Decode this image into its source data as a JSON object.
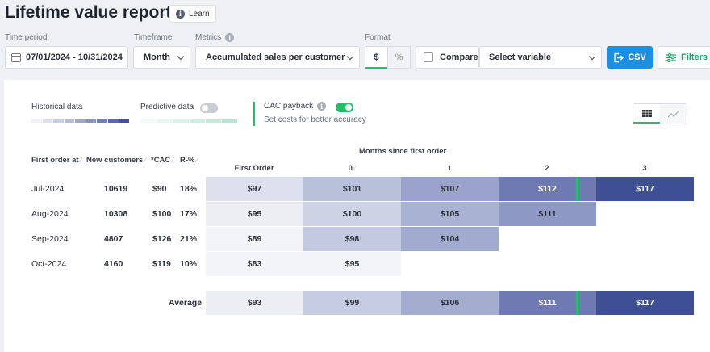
{
  "header": {
    "title": "Lifetime value report",
    "learn_label": "Learn"
  },
  "controls": {
    "time_period_label": "Time period",
    "time_period_value": "07/01/2024 - 10/31/2024",
    "timeframe_label": "Timeframe",
    "timeframe_value": "Month",
    "metrics_label": "Metrics",
    "metrics_value": "Accumulated sales per customer",
    "format_label": "Format",
    "format_options": [
      "$",
      "%"
    ],
    "compare_label": "Compare",
    "variable_placeholder": "Select variable",
    "csv_label": "CSV",
    "filters_label": "Filters"
  },
  "legend": {
    "historical_label": "Historical data",
    "predictive_label": "Predictive data",
    "cac_label": "CAC payback",
    "cac_subtitle": "Set costs for better accuracy",
    "historical_colors": [
      "#eef0f6",
      "#dde1ee",
      "#c9cfe3",
      "#b4bcd8",
      "#9ea8cd",
      "#8893c1",
      "#717db4",
      "#5b68a7",
      "#45529a"
    ],
    "predictive_colors": [
      "#f2fbf7",
      "#e6f7ef",
      "#d9f3e8",
      "#cdefe1",
      "#c1ebd9",
      "#b5e7d2"
    ]
  },
  "table": {
    "months_header": "Months since first order",
    "row_headers": [
      "First order at",
      "New customers",
      "*CAC",
      "R-%"
    ],
    "col_headers": [
      "First Order",
      "0",
      "1",
      "2",
      "3"
    ],
    "rows": [
      {
        "date": "Jul-2024",
        "customers": "10619",
        "cac": "$90",
        "r": "18%",
        "values": [
          "$97",
          "$101",
          "$107",
          "$112",
          "$117"
        ]
      },
      {
        "date": "Aug-2024",
        "customers": "10308",
        "cac": "$100",
        "r": "17%",
        "values": [
          "$95",
          "$100",
          "$105",
          "$111"
        ]
      },
      {
        "date": "Sep-2024",
        "customers": "4807",
        "cac": "$126",
        "r": "21%",
        "values": [
          "$89",
          "$98",
          "$104"
        ]
      },
      {
        "date": "Oct-2024",
        "customers": "4160",
        "cac": "$119",
        "r": "10%",
        "values": [
          "$83",
          "$95"
        ]
      }
    ],
    "average_label": "Average",
    "average_values": [
      "$93",
      "$99",
      "$106",
      "$111",
      "$117"
    ],
    "cell_colors": [
      [
        "#dde1ed",
        "#b9c0da",
        "#9aa3cb",
        "#6f7ab2",
        "#3f4f94"
      ],
      [
        "#eceef4",
        "#cdd2e5",
        "#aab2d3",
        "#8e98c4"
      ],
      [
        "#f3f4f7",
        "#c3c9e0",
        "#a1aacf"
      ],
      [
        "#f3f4f7",
        "#f3f4f7"
      ]
    ],
    "average_colors": [
      "#eceef4",
      "#c6cce2",
      "#a4acd0",
      "#6f7ab2",
      "#3f4f94"
    ]
  }
}
